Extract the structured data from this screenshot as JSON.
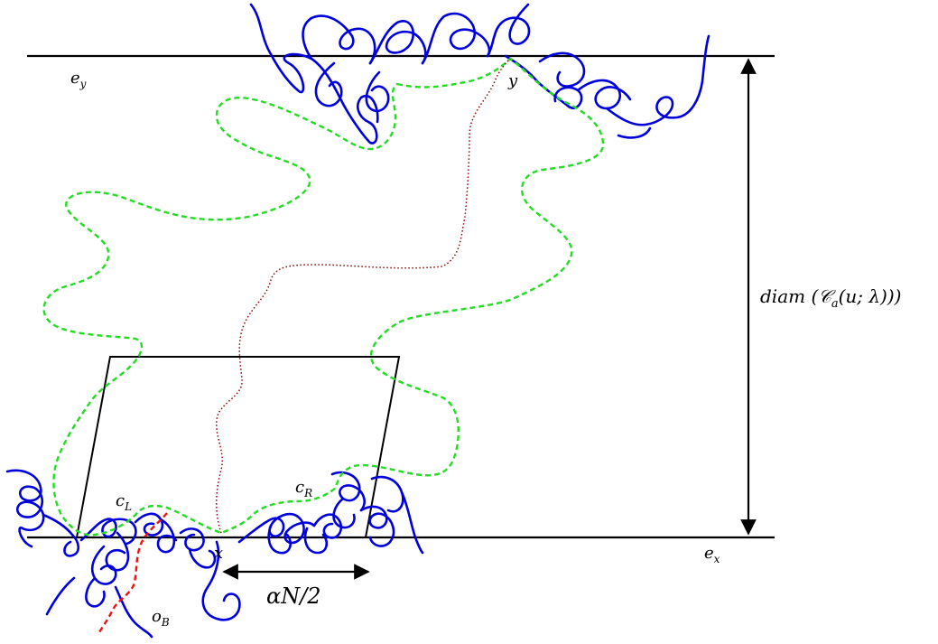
{
  "labels": {
    "e_y": "e",
    "e_y_sub": "y",
    "e_x": "e",
    "e_x_sub": "x",
    "y_point": "y",
    "x_point": "x",
    "c_L": "c",
    "c_L_sub": "L",
    "c_R": "c",
    "c_R_sub": "R",
    "o_B": "o",
    "o_B_sub": "B",
    "alpha_N": "αN/2",
    "diam": "diam (𝒞",
    "diam_sub": "a",
    "diam_rest": "(u; λ)))"
  },
  "colors": {
    "lines": "#000000",
    "blue_paths": "#0000dd",
    "green_dashed": "#22dd22",
    "red_dotted": "#990000",
    "red_dashed": "#ee1111"
  }
}
